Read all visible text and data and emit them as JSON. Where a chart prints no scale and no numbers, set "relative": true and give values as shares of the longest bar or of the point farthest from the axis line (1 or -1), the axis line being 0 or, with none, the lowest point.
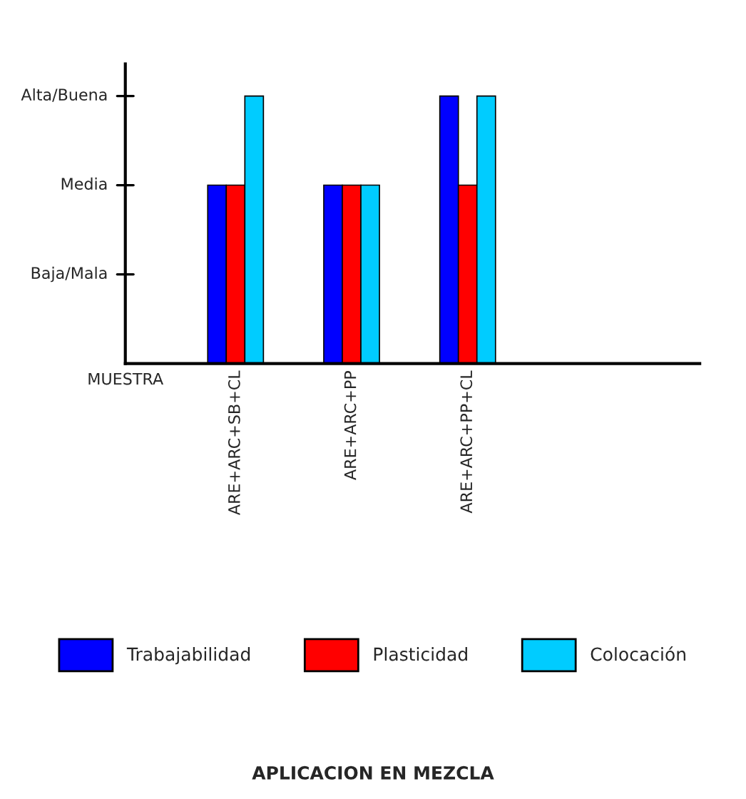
{
  "chart_data": {
    "type": "bar",
    "title": "APLICACION EN MEZCLA",
    "xlabel": "MUESTRA",
    "relative": true,
    "categories": [
      "ARE+ARC+SB+CL",
      "ARE+ARC+PP",
      "ARE+ARC+PP+CL"
    ],
    "series": [
      {
        "name": "Trabajabilidad",
        "color": "#0000ff",
        "values": [
          0.667,
          0.667,
          1
        ]
      },
      {
        "name": "Plasticidad",
        "color": "#ff0000",
        "values": [
          0.667,
          0.667,
          0.667
        ]
      },
      {
        "name": "Colocación",
        "color": "#00ccff",
        "values": [
          1,
          0.667,
          1
        ]
      }
    ],
    "annotations": [
      "Baja/Mala",
      "Media",
      "Alta/Buena"
    ],
    "grid": false,
    "legend": "bottom"
  }
}
